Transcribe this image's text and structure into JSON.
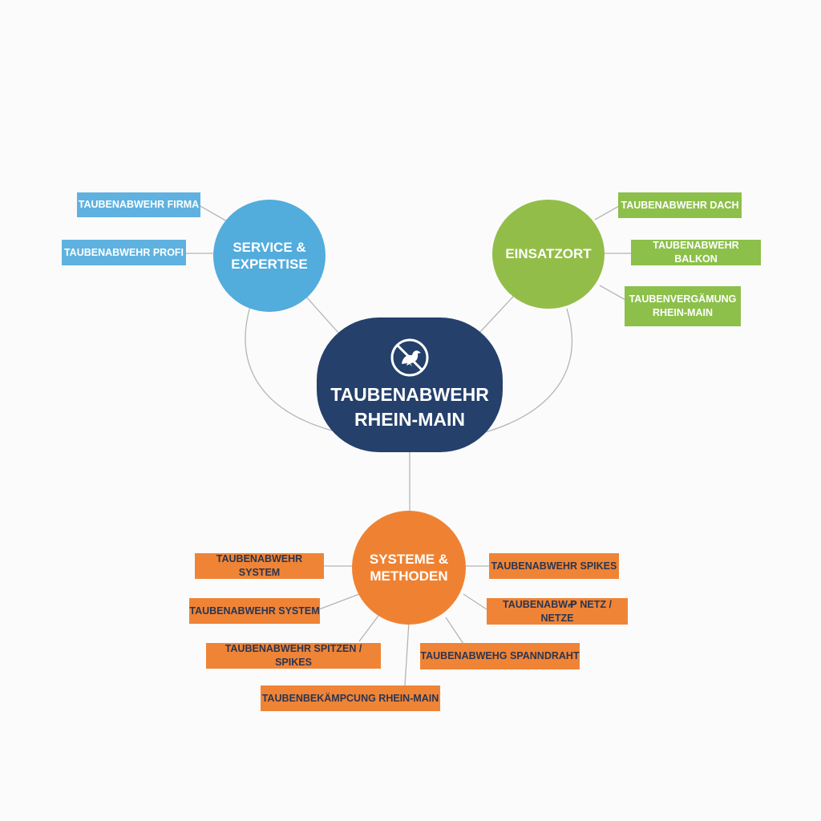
{
  "colors": {
    "navy": "#24406b",
    "blue": "#52acdc",
    "green": "#93bd49",
    "orange": "#ef8232",
    "tag_blue": "#5fb2df",
    "tag_green": "#8cc04a",
    "tag_orange": "#ef8436",
    "line": "#b5b5b5"
  },
  "center": {
    "icon": "no-pigeon-icon",
    "title": "TAUBENABWEHR\nRHEIN-MAIN"
  },
  "nodes": {
    "service": {
      "label": "SERVICE &\nEXPERTISE",
      "tags": [
        "TAUBENABWEHR FIRMA",
        "TAUBENABWEHR PROFI"
      ]
    },
    "einsatzort": {
      "label": "EINSATZORT",
      "tags": [
        "TAUBENABWEHR DACH",
        "TAUBENABWEHR BALKON",
        "TAUBENVERGÄMUNG\nRHEIN-MAIN"
      ]
    },
    "systeme": {
      "label": "SYSTEME &\nMETHODEN",
      "tags": [
        "TAUBENABWEHR SYSTEM",
        "TAUBENABWEHR SYSTEM",
        "TAUBENABWEHR SPITZEN / SPIKES",
        "TAUBENBEKÄMPCUNG RHEIN-MAIN",
        "TAUBENABWEHR SPIKES",
        "TAUBENABWꝒ NETZ / NETZE",
        "TAUBENABWEHG SPANNDRAHT"
      ]
    }
  }
}
